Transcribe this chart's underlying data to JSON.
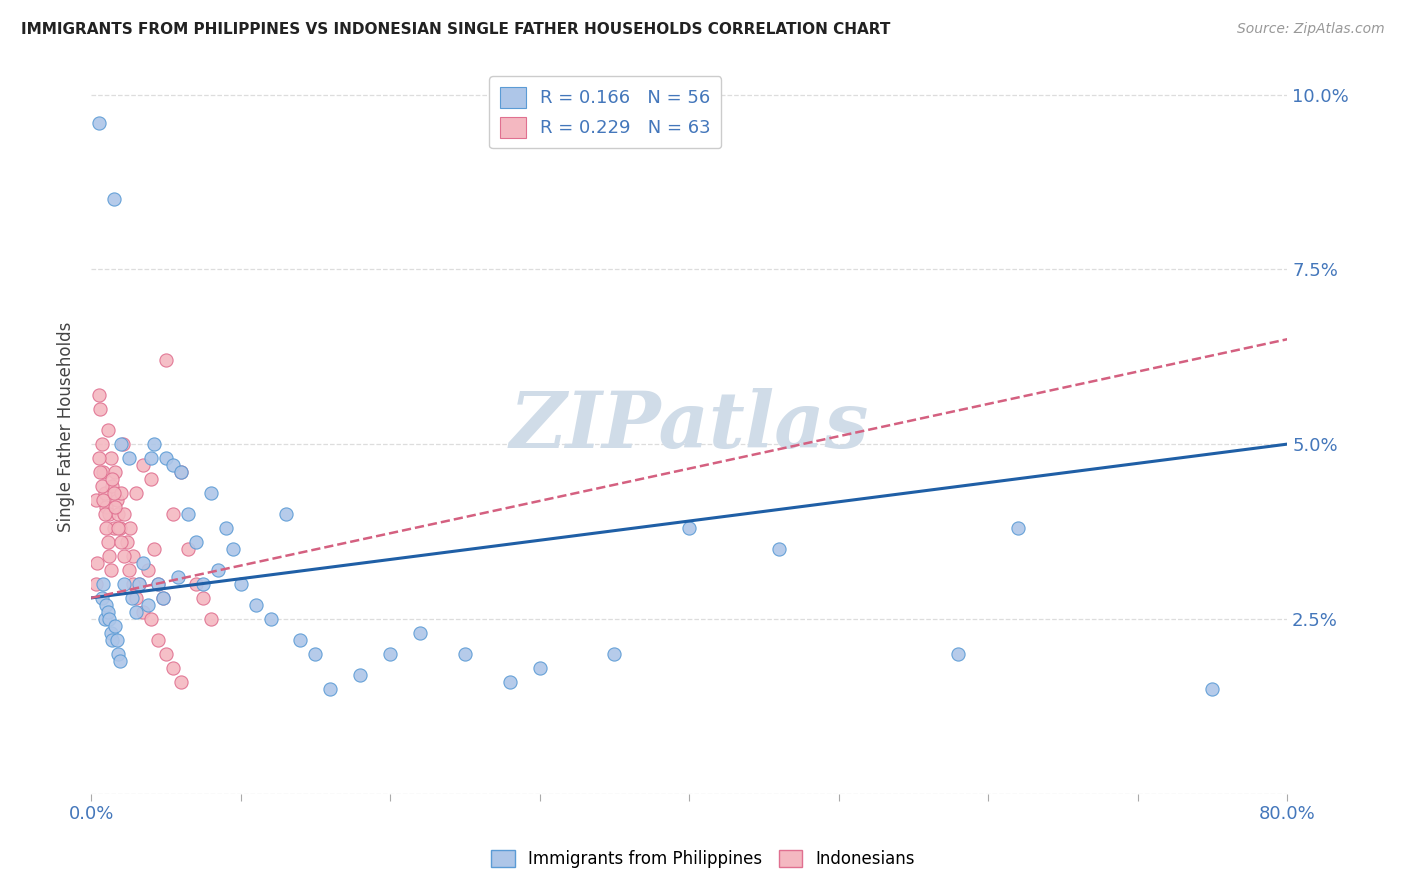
{
  "title": "IMMIGRANTS FROM PHILIPPINES VS INDONESIAN SINGLE FATHER HOUSEHOLDS CORRELATION CHART",
  "source": "Source: ZipAtlas.com",
  "ylabel": "Single Father Households",
  "legend_label1": "Immigrants from Philippines",
  "legend_label2": "Indonesians",
  "philippines_face_color": "#aec6e8",
  "philippines_edge_color": "#5b9bd5",
  "indonesian_face_color": "#f4b8c1",
  "indonesian_edge_color": "#e07090",
  "philippines_line_color": "#1f5fa6",
  "indonesian_line_color": "#d46080",
  "watermark_color": "#d0dce8",
  "background_color": "#ffffff",
  "R_philippines": 0.166,
  "N_philippines": 56,
  "R_indonesian": 0.229,
  "N_indonesian": 63,
  "xmin": 0.0,
  "xmax": 0.8,
  "ymin": 0.0,
  "ymax": 0.105,
  "phil_line_start_y": 0.028,
  "phil_line_end_y": 0.05,
  "indo_line_start_y": 0.028,
  "indo_line_end_y": 0.065,
  "philippines_x": [
    0.005,
    0.007,
    0.008,
    0.009,
    0.01,
    0.011,
    0.012,
    0.013,
    0.014,
    0.015,
    0.016,
    0.017,
    0.018,
    0.019,
    0.02,
    0.022,
    0.025,
    0.027,
    0.03,
    0.032,
    0.035,
    0.038,
    0.04,
    0.042,
    0.045,
    0.048,
    0.05,
    0.055,
    0.058,
    0.06,
    0.065,
    0.07,
    0.075,
    0.08,
    0.085,
    0.09,
    0.095,
    0.1,
    0.11,
    0.12,
    0.13,
    0.14,
    0.15,
    0.16,
    0.18,
    0.2,
    0.22,
    0.25,
    0.28,
    0.3,
    0.35,
    0.4,
    0.46,
    0.58,
    0.62,
    0.75
  ],
  "philippines_y": [
    0.096,
    0.028,
    0.03,
    0.025,
    0.027,
    0.026,
    0.025,
    0.023,
    0.022,
    0.085,
    0.024,
    0.022,
    0.02,
    0.019,
    0.05,
    0.03,
    0.048,
    0.028,
    0.026,
    0.03,
    0.033,
    0.027,
    0.048,
    0.05,
    0.03,
    0.028,
    0.048,
    0.047,
    0.031,
    0.046,
    0.04,
    0.036,
    0.03,
    0.043,
    0.032,
    0.038,
    0.035,
    0.03,
    0.027,
    0.025,
    0.04,
    0.022,
    0.02,
    0.015,
    0.017,
    0.02,
    0.023,
    0.02,
    0.016,
    0.018,
    0.02,
    0.038,
    0.035,
    0.02,
    0.038,
    0.015
  ],
  "indonesian_x": [
    0.003,
    0.005,
    0.006,
    0.007,
    0.008,
    0.009,
    0.01,
    0.011,
    0.012,
    0.013,
    0.014,
    0.015,
    0.016,
    0.017,
    0.018,
    0.019,
    0.02,
    0.021,
    0.022,
    0.024,
    0.026,
    0.028,
    0.03,
    0.032,
    0.035,
    0.038,
    0.04,
    0.042,
    0.045,
    0.048,
    0.05,
    0.055,
    0.06,
    0.065,
    0.07,
    0.075,
    0.08,
    0.003,
    0.004,
    0.005,
    0.006,
    0.007,
    0.008,
    0.009,
    0.01,
    0.011,
    0.012,
    0.013,
    0.014,
    0.015,
    0.016,
    0.018,
    0.02,
    0.022,
    0.025,
    0.028,
    0.03,
    0.035,
    0.04,
    0.045,
    0.05,
    0.055,
    0.06
  ],
  "indonesian_y": [
    0.042,
    0.057,
    0.055,
    0.05,
    0.046,
    0.043,
    0.041,
    0.052,
    0.04,
    0.048,
    0.044,
    0.038,
    0.046,
    0.042,
    0.04,
    0.038,
    0.043,
    0.05,
    0.04,
    0.036,
    0.038,
    0.034,
    0.043,
    0.03,
    0.047,
    0.032,
    0.045,
    0.035,
    0.03,
    0.028,
    0.062,
    0.04,
    0.046,
    0.035,
    0.03,
    0.028,
    0.025,
    0.03,
    0.033,
    0.048,
    0.046,
    0.044,
    0.042,
    0.04,
    0.038,
    0.036,
    0.034,
    0.032,
    0.045,
    0.043,
    0.041,
    0.038,
    0.036,
    0.034,
    0.032,
    0.03,
    0.028,
    0.026,
    0.025,
    0.022,
    0.02,
    0.018,
    0.016
  ]
}
